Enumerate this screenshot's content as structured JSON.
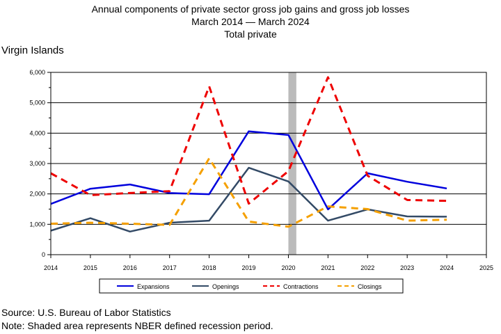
{
  "title_lines": [
    "Annual components of private sector gross job gains and gross job losses",
    "March 2014 — March 2024",
    "Total private"
  ],
  "region": "Virgin Islands",
  "footer": {
    "source": "Source: U.S. Bureau of Labor Statistics",
    "note": "Note: Shaded area represents NBER defined recession period."
  },
  "chart_data": {
    "type": "line",
    "title": "Annual components of private sector gross job gains and gross job losses",
    "subtitle": "March 2014 — March 2024",
    "xlim": [
      2014,
      2025
    ],
    "ylim": [
      0,
      6000
    ],
    "x_ticks": [
      2014,
      2015,
      2016,
      2017,
      2018,
      2019,
      2020,
      2021,
      2022,
      2023,
      2024,
      2025
    ],
    "y_ticks": [
      0,
      1000,
      2000,
      3000,
      4000,
      5000,
      6000
    ],
    "y_tick_labels": [
      "0",
      "1,000",
      "2,000",
      "3,000",
      "4,000",
      "5,000",
      "6,000"
    ],
    "grid": "horizontal",
    "recession": [
      2020,
      2020.2
    ],
    "x": [
      2014,
      2015,
      2016,
      2017,
      2018,
      2019,
      2020,
      2021,
      2022,
      2023,
      2024
    ],
    "series": [
      {
        "name": "Expansions",
        "color": "#0000dd",
        "dash": "solid",
        "values": [
          1670,
          2170,
          2310,
          2030,
          1990,
          4060,
          3940,
          1490,
          2680,
          2400,
          2180
        ]
      },
      {
        "name": "Openings",
        "color": "#334a66",
        "dash": "solid",
        "values": [
          790,
          1200,
          760,
          1050,
          1120,
          2860,
          2410,
          1120,
          1490,
          1260,
          1250
        ]
      },
      {
        "name": "Contractions",
        "color": "#ee0000",
        "dash": "dashed",
        "values": [
          2680,
          1960,
          2030,
          2090,
          5540,
          1680,
          2750,
          5840,
          2600,
          1800,
          1770
        ]
      },
      {
        "name": "Closings",
        "color": "#f5a000",
        "dash": "dashed",
        "values": [
          1020,
          1050,
          1020,
          980,
          3170,
          1090,
          920,
          1590,
          1500,
          1120,
          1150
        ]
      }
    ],
    "legend_position": "bottom"
  }
}
